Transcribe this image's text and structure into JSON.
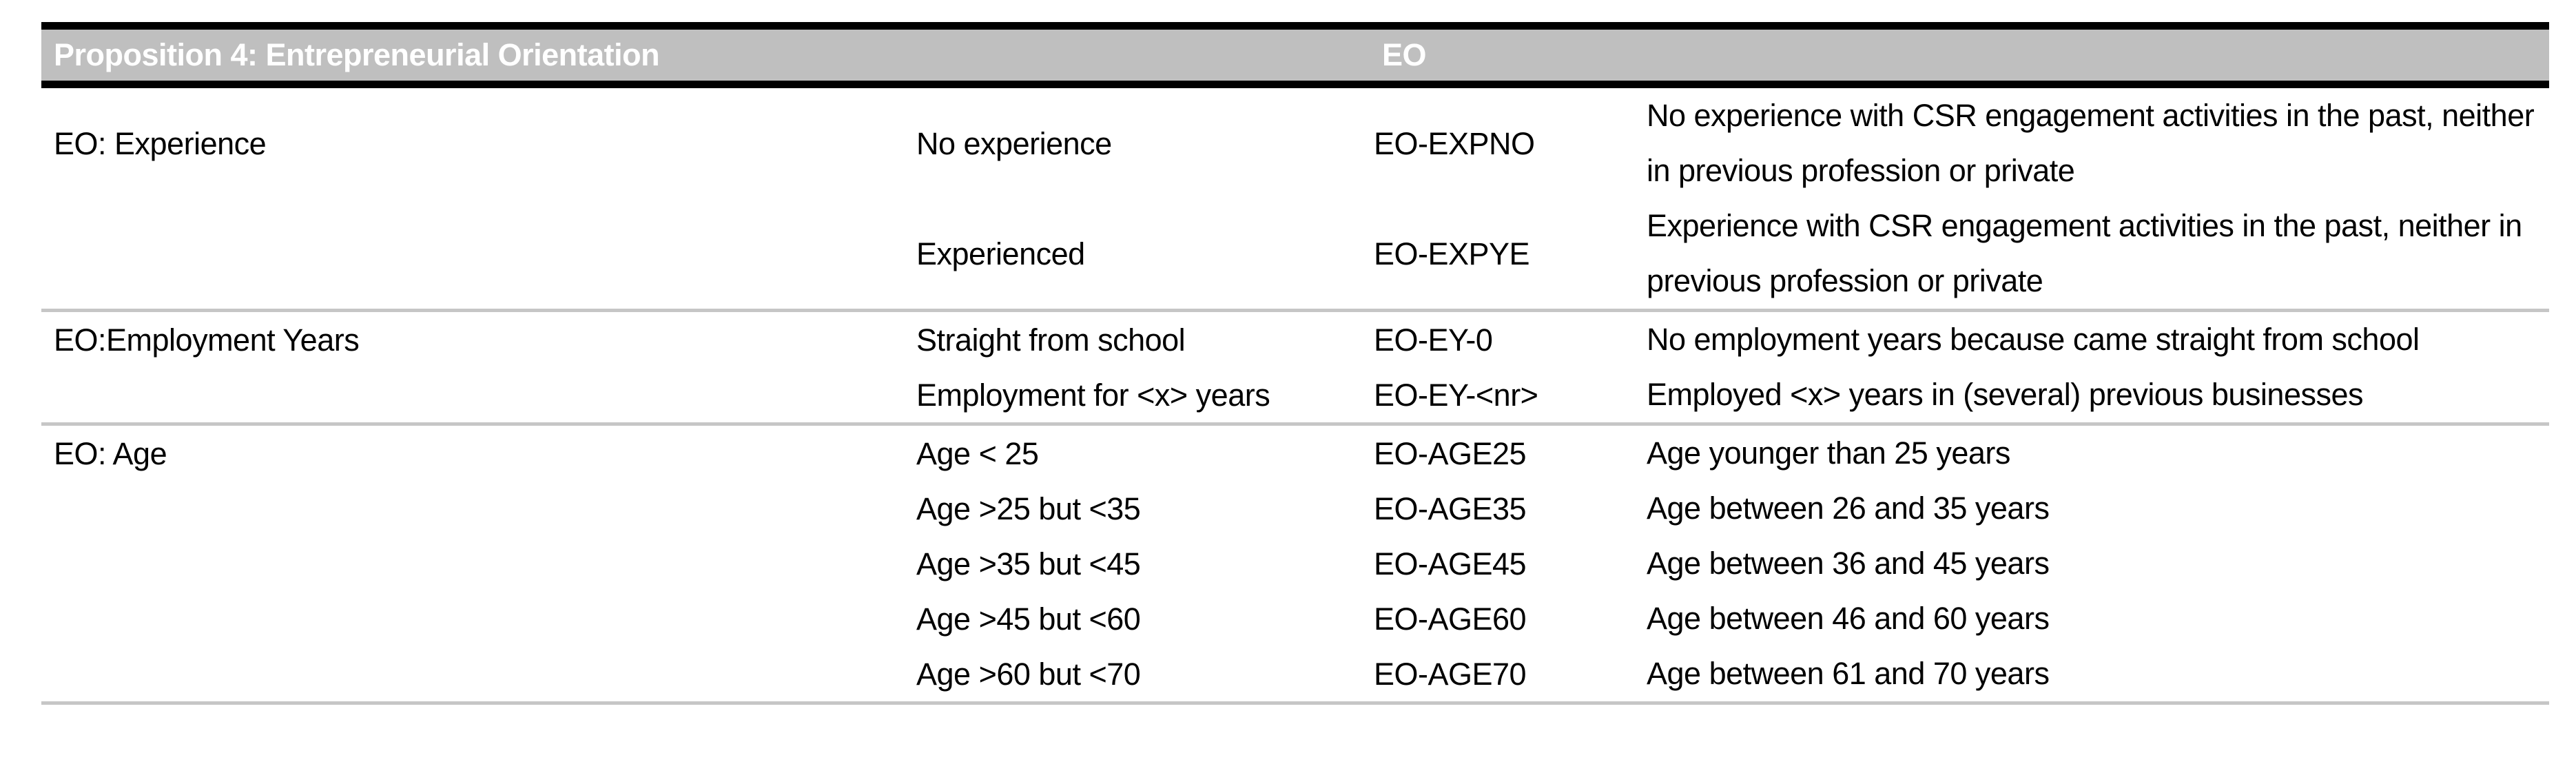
{
  "header": {
    "title": "Proposition 4: Entrepreneurial Orientation",
    "code_label": "EO"
  },
  "sections": [
    {
      "category": "EO: Experience",
      "rows": [
        {
          "value": "No experience",
          "code": "EO-EXPNO",
          "description": "No experience with CSR engagement activities in the past, neither in previous profession or private"
        },
        {
          "value": "Experienced",
          "code": "EO-EXPYE",
          "description": "Experience with CSR engagement activities in the past, neither in previous profession or private"
        }
      ]
    },
    {
      "category": "EO:Employment Years",
      "rows": [
        {
          "value": "Straight from school",
          "code": "EO-EY-0",
          "description": "No employment years because came straight from school"
        },
        {
          "value": "Employment for <x> years",
          "code": "EO-EY-<nr>",
          "description": "Employed <x> years in (several) previous businesses"
        }
      ]
    },
    {
      "category": "EO: Age",
      "rows": [
        {
          "value": "Age < 25",
          "code": "EO-AGE25",
          "description": "Age younger than 25 years"
        },
        {
          "value": "Age >25 but <35",
          "code": "EO-AGE35",
          "description": "Age between 26 and 35 years"
        },
        {
          "value": "Age >35 but <45",
          "code": "EO-AGE45",
          "description": "Age between 36 and 45 years"
        },
        {
          "value": "Age >45 but <60",
          "code": "EO-AGE60",
          "description": "Age between 46 and 60 years"
        },
        {
          "value": "Age >60 but <70",
          "code": "EO-AGE70",
          "description": "Age between 61 and 70 years"
        }
      ]
    }
  ],
  "colors": {
    "header_background": "#bfbfbf",
    "header_text": "#ffffff",
    "header_rule": "#000000",
    "section_separator": "#c6c6c6",
    "body_text": "#000000",
    "page_background": "#ffffff"
  }
}
